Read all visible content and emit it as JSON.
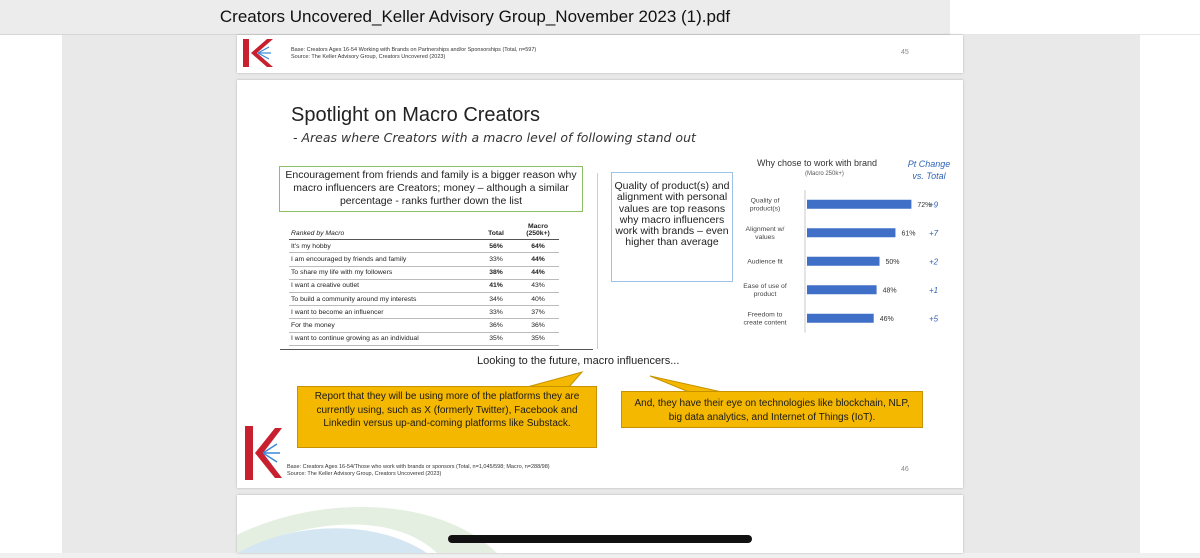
{
  "window": {
    "title": "Creators Uncovered_Keller Advisory Group_November 2023 (1).pdf"
  },
  "page45": {
    "base": "Base: Creators Ages 16-54 Working with Brands on Partnerships and/or Sponsorships (Total, n=597)",
    "source": "Source: The Keller Advisory Group, Creators Uncovered (2023)",
    "page_number": "45"
  },
  "slide": {
    "title": "Spotlight on Macro Creators",
    "subtitle": "- Areas where Creators with a macro level of following stand out",
    "green_box": "Encouragement from friends and family is a bigger reason why macro influencers are Creators; money – although a similar percentage - ranks further down the list",
    "blue_box": "Quality of product(s) and alignment with personal values are top reasons why macro influencers work with brands – even higher than average",
    "table": {
      "header_label": "Ranked by Macro",
      "col_total": "Total",
      "col_macro": "Macro (250k+)",
      "rows": [
        {
          "label": "It's my hobby",
          "total": "56%",
          "macro": "64%"
        },
        {
          "label": "I am encouraged by friends and family",
          "total": "33%",
          "macro": "44%"
        },
        {
          "label": "To share my life with my followers",
          "total": "38%",
          "macro": "44%"
        },
        {
          "label": "I want a creative outlet",
          "total": "41%",
          "macro": "43%"
        },
        {
          "label": "To build a community around my interests",
          "total": "34%",
          "macro": "40%"
        },
        {
          "label": "I want to become an influencer",
          "total": "33%",
          "macro": "37%"
        },
        {
          "label": "For the money",
          "total": "36%",
          "macro": "36%"
        },
        {
          "label": "I want to continue growing as an individual",
          "total": "35%",
          "macro": "35%"
        }
      ]
    },
    "chart_header": "Why chose to work with brand",
    "chart_subheader": "(Macro 250k+)",
    "pt_change_header": "Pt Change vs. Total",
    "future_text": "Looking to the future, macro influencers...",
    "callout_left": "Report that they will be using more of the platforms they are currently using, such as X (formerly Twitter), Facebook and Linkedin versus up-and-coming platforms like Substack.",
    "callout_right": "And, they have their eye on technologies like blockchain, NLP, big data analytics, and Internet of Things (IoT).",
    "base": "Base: Creators Ages 16-54/Those who work with brands or sponsors (Total, n=1,045/598; Macro, n=288/98)",
    "source": "Source: The Keller Advisory Group, Creators Uncovered (2023)",
    "page_number": "46"
  },
  "chart_data": {
    "type": "bar",
    "orientation": "horizontal",
    "title": "Why chose to work with brand",
    "subtitle": "(Macro 250k+)",
    "categories": [
      "Quality of product(s)",
      "Alignment w/ values",
      "Audience fit",
      "Ease of use of product",
      "Freedom to create content"
    ],
    "values": [
      72,
      61,
      50,
      48,
      46
    ],
    "value_labels": [
      "72%",
      "61%",
      "50%",
      "48%",
      "46%"
    ],
    "pt_change": [
      "+9",
      "+7",
      "+2",
      "+1",
      "+5"
    ],
    "bar_color": "#3f6fc6",
    "xlim": [
      0,
      100
    ]
  },
  "colors": {
    "accent_blue": "#2f64b5",
    "callout": "#f5b800",
    "green_border": "#8cbf6a",
    "logo_red": "#c8202e"
  }
}
